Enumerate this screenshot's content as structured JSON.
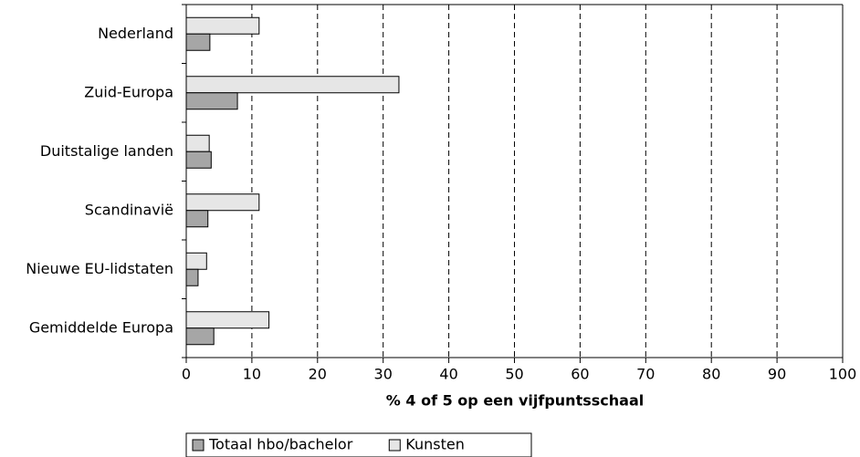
{
  "chart_data": {
    "type": "hbar",
    "x_label": "% 4 of 5 op een vijfpuntsschaal",
    "categories": [
      "Nederland",
      "Zuid-Europa",
      "Duitstalige landen",
      "Scandinavië",
      "Nieuwe EU-lidstaten",
      "Gemiddelde Europa"
    ],
    "series": [
      {
        "name": "Totaal hbo/bachelor",
        "color": "#a6a6a6",
        "values": [
          3.6,
          7.8,
          3.8,
          3.3,
          1.8,
          4.2
        ]
      },
      {
        "name": "Kunsten",
        "color": "#e6e6e6",
        "values": [
          11.1,
          32.4,
          3.5,
          11.1,
          3.1,
          12.6
        ]
      }
    ],
    "xlim": [
      0,
      100
    ],
    "xticks": [
      0,
      10,
      20,
      30,
      40,
      50,
      60,
      70,
      80,
      90,
      100
    ],
    "grid": true,
    "legend": "bottom"
  }
}
